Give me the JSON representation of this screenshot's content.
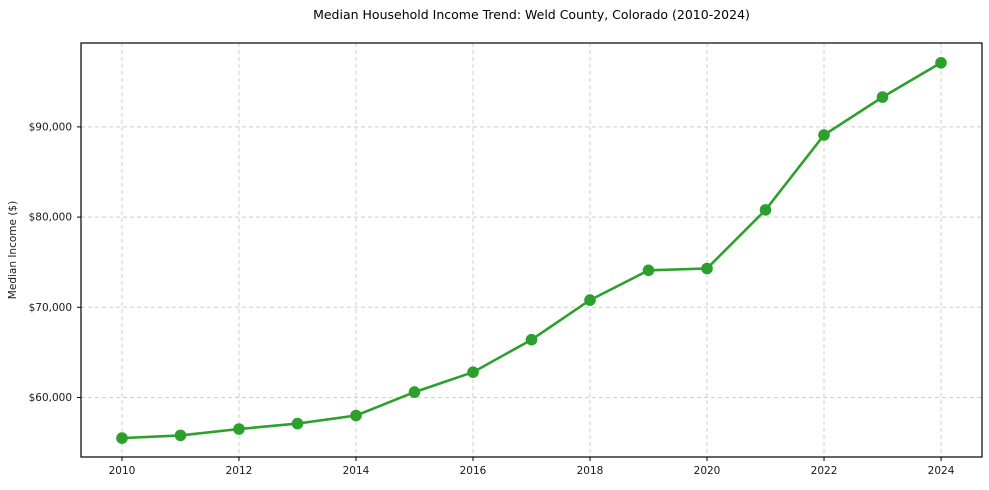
{
  "page": {
    "background": "#ffffff"
  },
  "chart_data": {
    "type": "line",
    "title": "Median Household Income Trend: Weld County, Colorado (2010-2024)",
    "xlabel": "",
    "ylabel": "Median Income ($)",
    "x": [
      2010,
      2011,
      2012,
      2013,
      2014,
      2015,
      2016,
      2017,
      2018,
      2019,
      2020,
      2021,
      2022,
      2023,
      2024
    ],
    "series": [
      {
        "values": [
          55500,
          55800,
          56500,
          57100,
          58000,
          60600,
          62800,
          66400,
          70800,
          74100,
          74300,
          80800,
          89100,
          93300,
          97100
        ],
        "color": "#2ca02c",
        "marker": "circle",
        "marker_radius": 5.8,
        "line_width": 2.6
      }
    ],
    "xlim": [
      2009.3,
      2024.7
    ],
    "ylim": [
      53400,
      99300
    ],
    "xticks": [
      2010,
      2012,
      2014,
      2016,
      2018,
      2020,
      2022,
      2024
    ],
    "xtick_labels": [
      "2010",
      "2012",
      "2014",
      "2016",
      "2018",
      "2020",
      "2022",
      "2024"
    ],
    "yticks": [
      60000,
      70000,
      80000,
      90000
    ],
    "ytick_labels": [
      "$60,000",
      "$70,000",
      "$80,000",
      "$90,000"
    ],
    "grid": true,
    "grid_color": "#cfcfcf",
    "grid_dash": "4 3",
    "legend": "none",
    "spine_color": "#000000",
    "tick_color": "#000000",
    "text_color": "#1a1a1a"
  }
}
